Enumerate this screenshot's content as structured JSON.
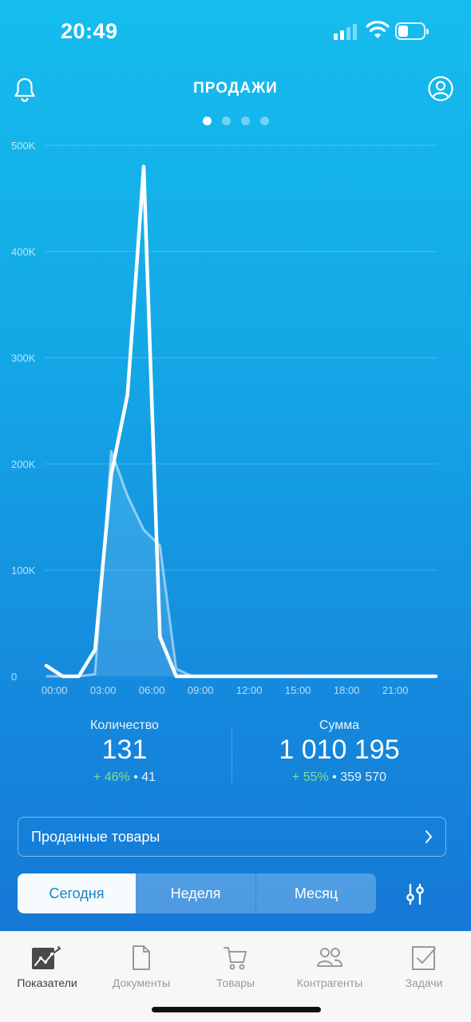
{
  "status_bar": {
    "time": "20:49"
  },
  "header": {
    "title": "ПРОДАЖИ",
    "page_count": 4,
    "active_page": 0
  },
  "chart_data": {
    "type": "line",
    "y_ticks": [
      "500K",
      "400K",
      "300K",
      "200K",
      "100K",
      "0"
    ],
    "y_tick_values": [
      500000,
      400000,
      300000,
      200000,
      100000,
      0
    ],
    "ylim": [
      0,
      500000
    ],
    "x_ticks": [
      "00:00",
      "03:00",
      "06:00",
      "09:00",
      "12:00",
      "15:00",
      "18:00",
      "21:00"
    ],
    "xlim": [
      -0.6,
      23.6
    ],
    "grid": true,
    "series": [
      {
        "x": [
          -0.5,
          0.5,
          1.5,
          2.5,
          3.5,
          4.5,
          5.5,
          6.5,
          7.5,
          8.5,
          9.5,
          10.5,
          11.5,
          12.5,
          13.5,
          14.5,
          15.5,
          16.5,
          17.5,
          18.5,
          19.5,
          20.5,
          21.5,
          22.5,
          23.5
        ],
        "values": [
          10000,
          0,
          0,
          25000,
          190000,
          265000,
          480000,
          37000,
          0,
          0,
          0,
          0,
          0,
          0,
          0,
          0,
          0,
          0,
          0,
          0,
          0,
          0,
          0,
          0,
          0
        ]
      },
      {
        "x": [
          -0.5,
          0.5,
          1.5,
          2.5,
          3.5,
          4.5,
          5.5,
          6.5,
          7.5,
          8.5,
          9.5,
          10.5,
          11.5,
          12.5,
          13.5,
          14.5,
          15.5,
          16.5,
          17.5,
          18.5,
          19.5,
          20.5,
          21.5,
          22.5,
          23.5
        ],
        "values": [
          0,
          0,
          0,
          2000,
          212000,
          170000,
          138000,
          123000,
          7000,
          0,
          0,
          0,
          0,
          0,
          0,
          0,
          0,
          0,
          0,
          0,
          0,
          0,
          0,
          0,
          0
        ]
      }
    ]
  },
  "stats": {
    "quantity": {
      "label": "Количество",
      "value": "131",
      "change": "+ 46%",
      "sep": "•",
      "previous": "41"
    },
    "sum": {
      "label": "Сумма",
      "value": "1 010 195",
      "change": "+ 55%",
      "sep": "•",
      "previous": "359 570"
    }
  },
  "sold_goods": {
    "label": "Проданные товары"
  },
  "periods": {
    "today": "Сегодня",
    "week": "Неделя",
    "month": "Месяц",
    "active": "today"
  },
  "bottom_nav": [
    {
      "label": "Показатели",
      "icon": "chart-icon"
    },
    {
      "label": "Документы",
      "icon": "document-icon"
    },
    {
      "label": "Товары",
      "icon": "cart-icon"
    },
    {
      "label": "Контрагенты",
      "icon": "contacts-icon"
    },
    {
      "label": "Задачи",
      "icon": "tasks-icon"
    }
  ]
}
